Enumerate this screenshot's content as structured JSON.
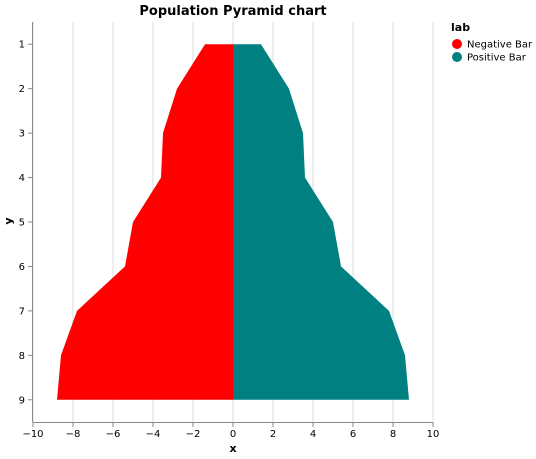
{
  "chart_data": {
    "type": "area",
    "title": "Population Pyramid chart",
    "xlabel": "x",
    "ylabel": "y",
    "xlim": [
      -10,
      10
    ],
    "x_ticks": [
      -10,
      -8,
      -6,
      -4,
      -2,
      0,
      2,
      4,
      6,
      8,
      10
    ],
    "y_categories": [
      1,
      2,
      3,
      4,
      5,
      6,
      7,
      8,
      9
    ],
    "grid": true,
    "legend": {
      "title": "lab",
      "position": "top-right",
      "entries": [
        {
          "name": "Negative Bar",
          "color": "#ff0000"
        },
        {
          "name": "Positive Bar",
          "color": "#008080"
        }
      ]
    },
    "series": [
      {
        "name": "Negative Bar",
        "color": "#ff0000",
        "y": [
          1,
          2,
          3,
          4,
          5,
          6,
          7,
          8,
          9
        ],
        "values": [
          -1.4,
          -2.8,
          -3.5,
          -3.6,
          -5.0,
          -5.4,
          -7.8,
          -8.6,
          -8.8
        ]
      },
      {
        "name": "Positive Bar",
        "color": "#008080",
        "y": [
          1,
          2,
          3,
          4,
          5,
          6,
          7,
          8,
          9
        ],
        "values": [
          1.4,
          2.8,
          3.5,
          3.6,
          5.0,
          5.4,
          7.8,
          8.6,
          8.8
        ]
      }
    ]
  }
}
